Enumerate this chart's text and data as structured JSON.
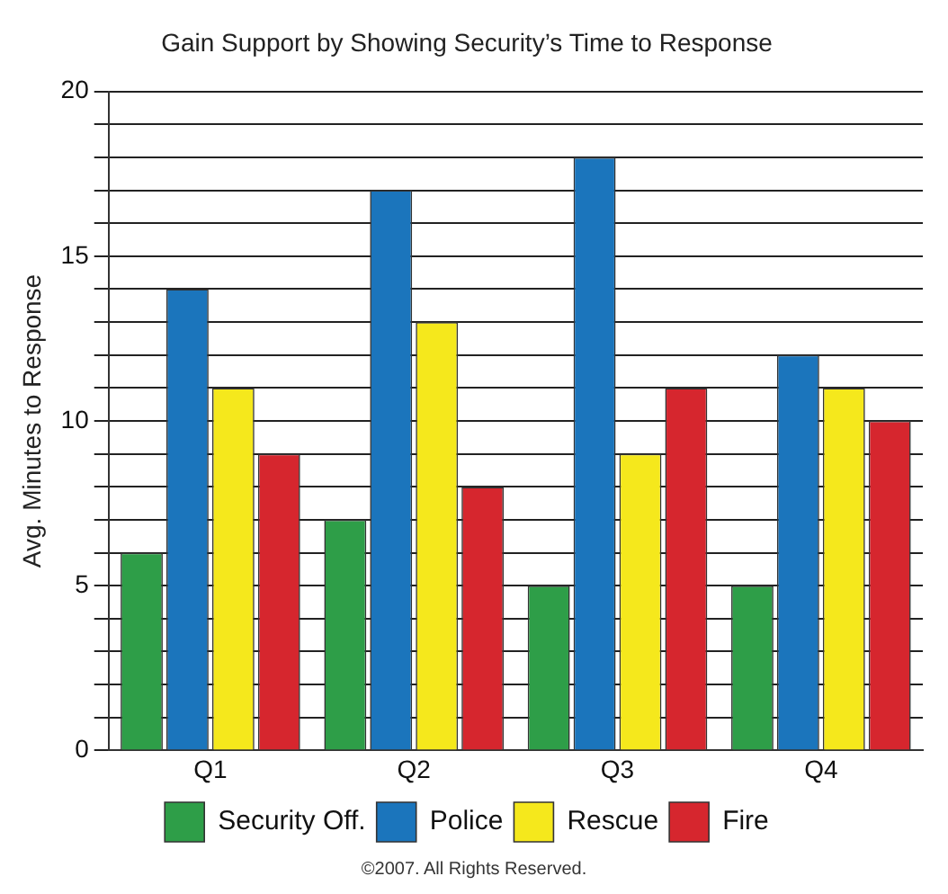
{
  "chart_data": {
    "type": "bar",
    "title": "Gain Support by Showing Security’s Time to Response",
    "ylabel": "Avg. Minutes to Response",
    "categories": [
      "Q1",
      "Q2",
      "Q3",
      "Q4"
    ],
    "series": [
      {
        "name": "Security Off.",
        "color": "#2e9e48",
        "values": [
          6,
          7,
          5,
          5
        ]
      },
      {
        "name": "Police",
        "color": "#1b75bc",
        "values": [
          14,
          17,
          18,
          12
        ]
      },
      {
        "name": "Rescue",
        "color": "#f5e81c",
        "values": [
          11,
          13,
          9,
          11
        ]
      },
      {
        "name": "Fire",
        "color": "#d6262e",
        "values": [
          9,
          8,
          11,
          10
        ]
      }
    ],
    "ylim": [
      0,
      20
    ],
    "yticks": [
      0,
      {
        "value": 1,
        "label": null
      },
      {
        "value": 2,
        "label": null
      },
      {
        "value": 3,
        "label": null
      },
      {
        "value": 4,
        "label": null
      },
      5,
      {
        "value": 6,
        "label": null
      },
      {
        "value": 7,
        "label": null
      },
      {
        "value": 8,
        "label": null
      },
      {
        "value": 9,
        "label": null
      },
      10,
      {
        "value": 11,
        "label": null
      },
      {
        "value": 12,
        "label": null
      },
      {
        "value": 13,
        "label": null
      },
      {
        "value": 14,
        "label": null
      },
      15,
      {
        "value": 16,
        "label": null
      },
      {
        "value": 17,
        "label": null
      },
      {
        "value": 18,
        "label": null
      },
      {
        "value": 19,
        "label": null
      },
      20
    ],
    "grid": "y",
    "legend": "bottom",
    "annotations": [
      "©2007. All Rights Reserved."
    ]
  }
}
